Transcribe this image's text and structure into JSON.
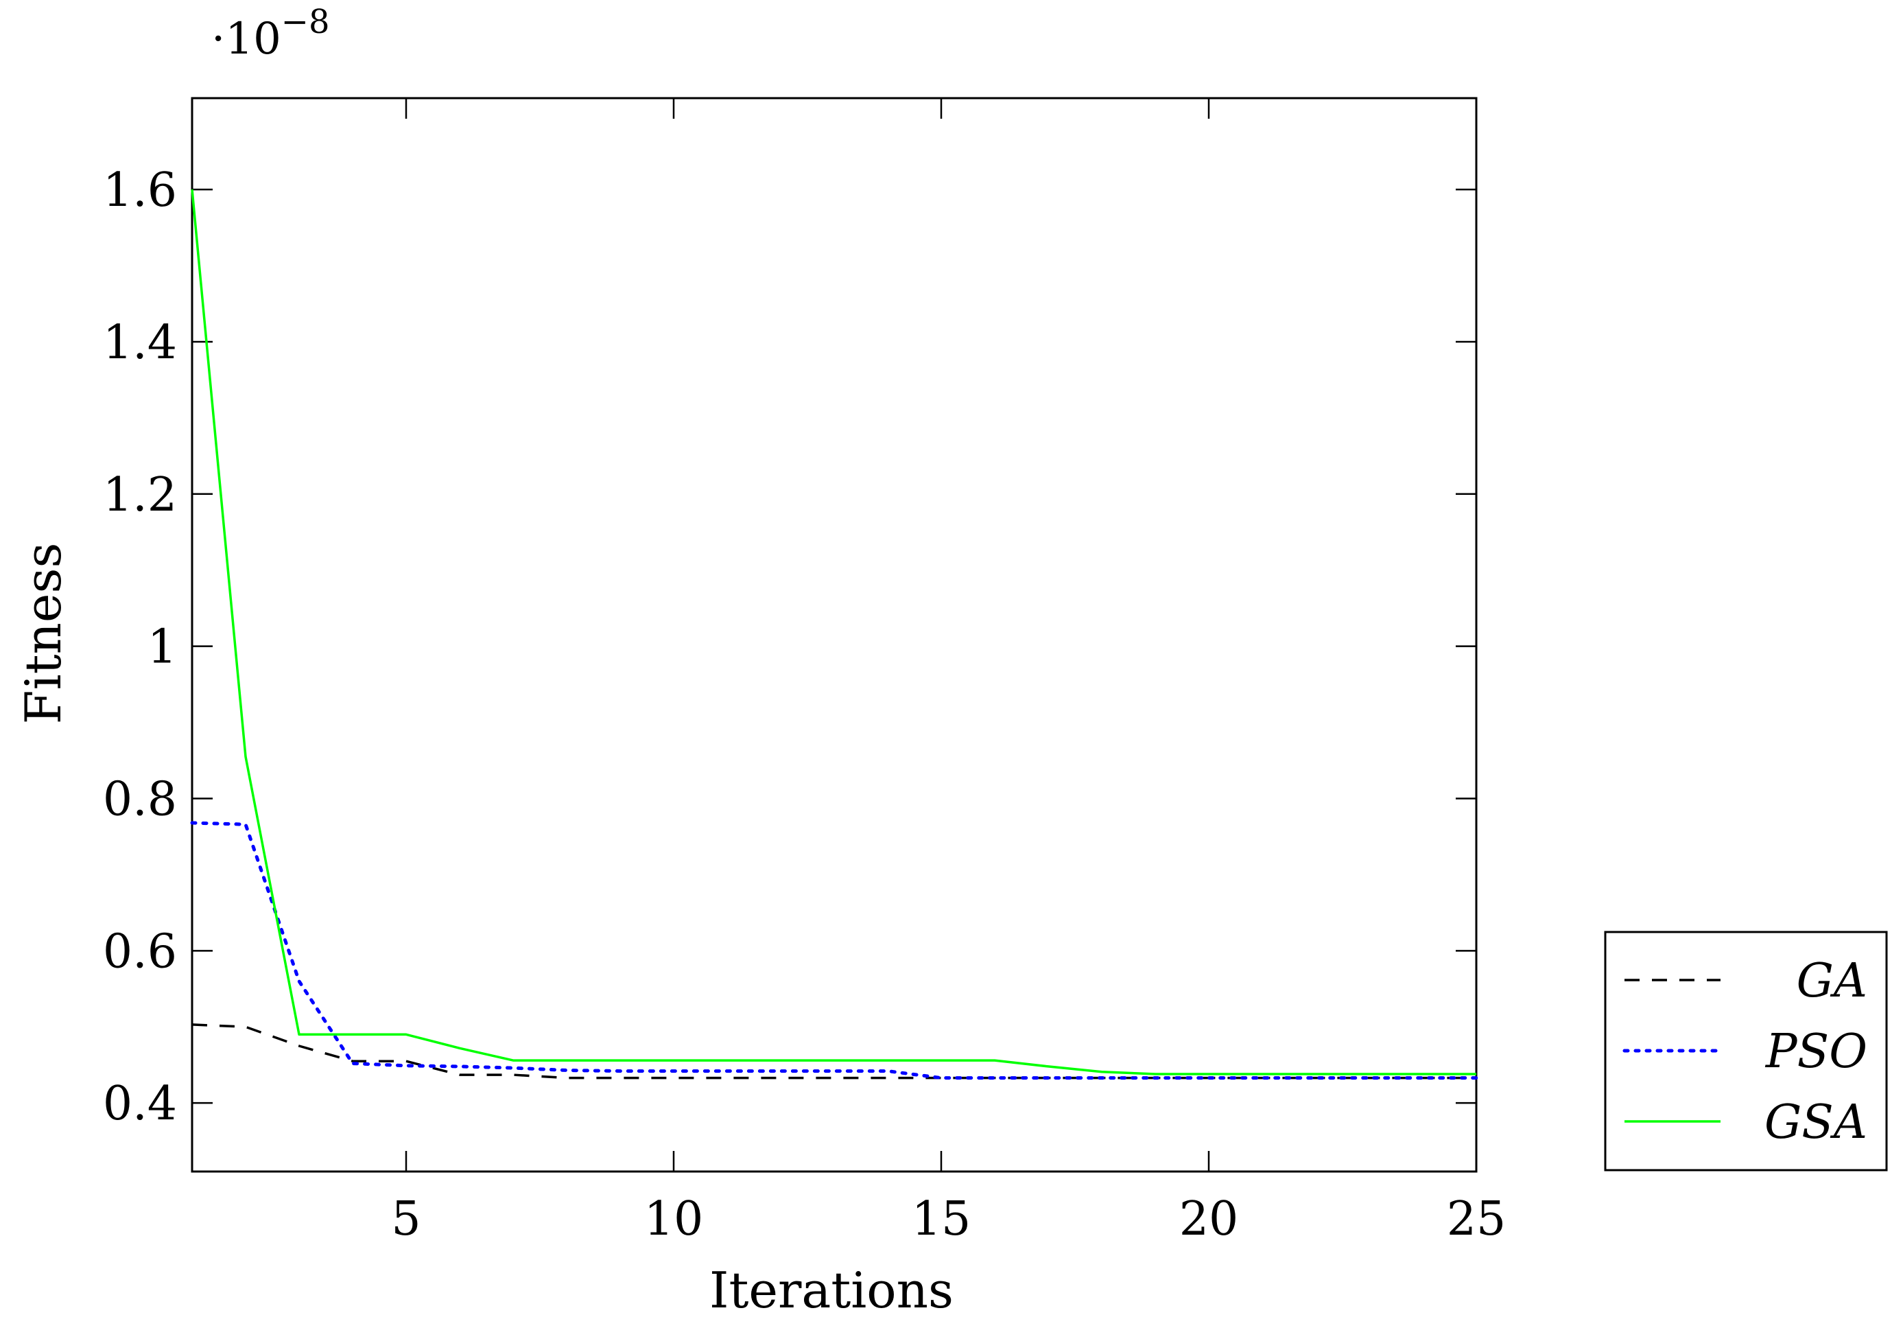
{
  "chart_data": {
    "type": "line",
    "xlabel": "Iterations",
    "ylabel": "Fitness",
    "y_multiplier": {
      "base": "·10",
      "exponent": "−8"
    },
    "xlim": [
      1,
      25
    ],
    "ylim": [
      0.31,
      1.72
    ],
    "x_ticks": [
      5,
      10,
      15,
      20,
      25
    ],
    "x_tick_labels": [
      "5",
      "10",
      "15",
      "20",
      "25"
    ],
    "y_ticks": [
      0.4,
      0.6,
      0.8,
      1.0,
      1.2,
      1.4,
      1.6
    ],
    "y_tick_labels": [
      "0.4",
      "0.6",
      "0.8",
      "1",
      "1.2",
      "1.4",
      "1.6"
    ],
    "grid": false,
    "legend_position": "outside-right-bottom",
    "series": [
      {
        "name": "GA",
        "style": "dashed",
        "color": "#000000",
        "x": [
          1,
          2,
          3,
          4,
          5,
          6,
          7,
          8,
          9,
          10,
          11,
          12,
          13,
          14,
          15,
          16,
          17,
          18,
          19,
          20,
          21,
          22,
          23,
          24,
          25
        ],
        "values": [
          0.503,
          0.5,
          0.475,
          0.455,
          0.455,
          0.437,
          0.437,
          0.433,
          0.433,
          0.433,
          0.433,
          0.433,
          0.433,
          0.433,
          0.433,
          0.433,
          0.433,
          0.433,
          0.433,
          0.433,
          0.433,
          0.433,
          0.433,
          0.433,
          0.433
        ]
      },
      {
        "name": "PSO",
        "style": "dotted",
        "color": "#0000ff",
        "x": [
          1,
          2,
          3,
          4,
          5,
          6,
          7,
          8,
          9,
          10,
          11,
          12,
          13,
          14,
          15,
          16,
          17,
          18,
          19,
          20,
          21,
          22,
          23,
          24,
          25
        ],
        "values": [
          0.768,
          0.766,
          0.56,
          0.452,
          0.449,
          0.448,
          0.446,
          0.443,
          0.442,
          0.442,
          0.442,
          0.442,
          0.442,
          0.442,
          0.433,
          0.433,
          0.433,
          0.433,
          0.433,
          0.433,
          0.433,
          0.433,
          0.433,
          0.433,
          0.433
        ]
      },
      {
        "name": "GSA",
        "style": "solid",
        "color": "#00ff00",
        "x": [
          1,
          2,
          3,
          4,
          5,
          6,
          7,
          8,
          9,
          10,
          11,
          12,
          13,
          14,
          15,
          16,
          17,
          18,
          19,
          20,
          21,
          22,
          23,
          24,
          25
        ],
        "values": [
          1.6,
          0.855,
          0.49,
          0.49,
          0.49,
          0.472,
          0.456,
          0.456,
          0.456,
          0.456,
          0.456,
          0.456,
          0.456,
          0.456,
          0.456,
          0.456,
          0.448,
          0.441,
          0.438,
          0.438,
          0.438,
          0.438,
          0.438,
          0.438,
          0.438
        ]
      }
    ]
  }
}
